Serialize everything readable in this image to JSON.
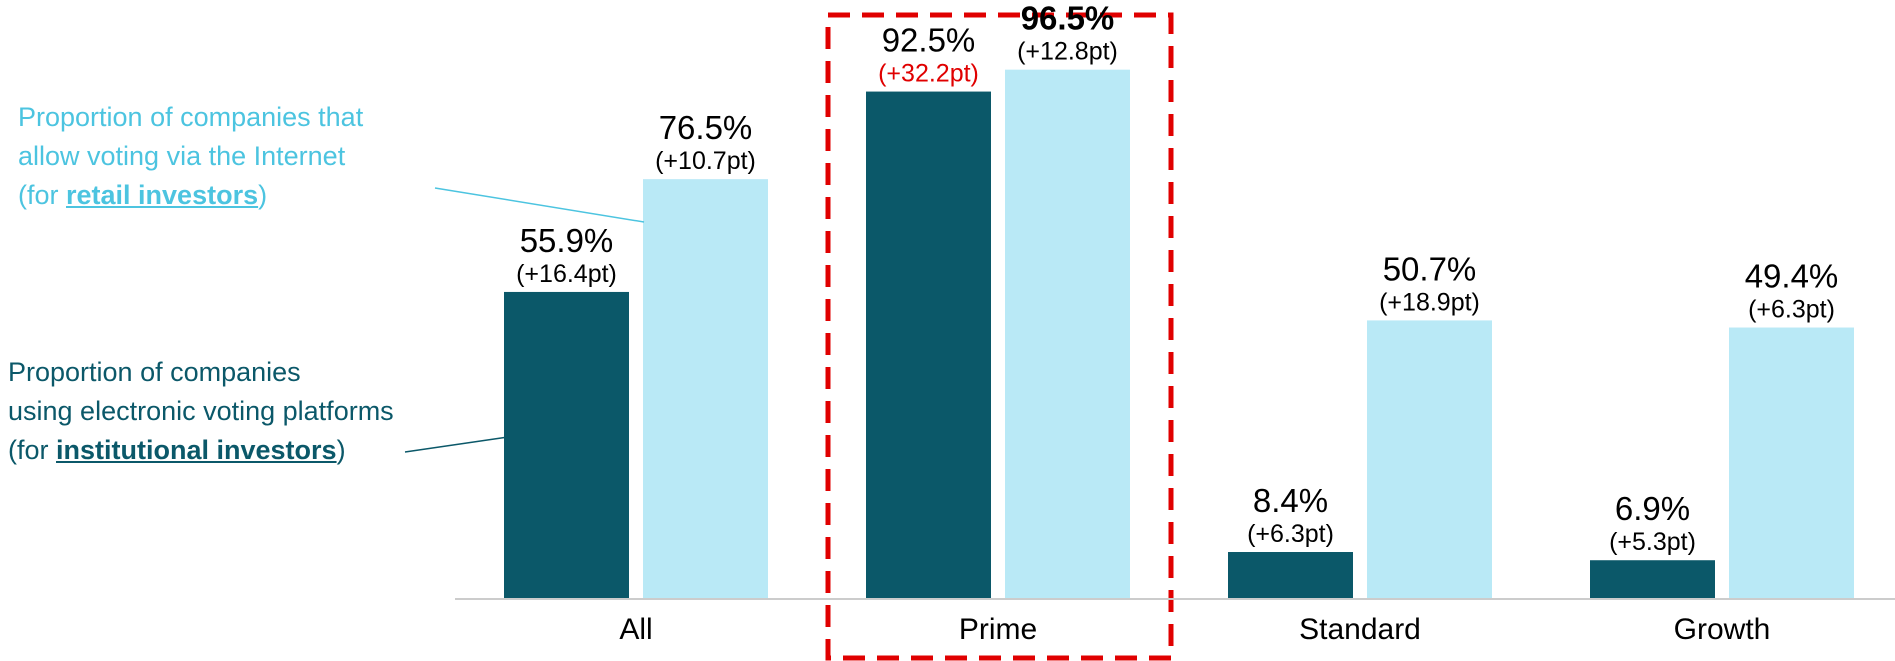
{
  "colors": {
    "institutional": "#0b5869",
    "retail": "#b9e9f6",
    "retail_text": "#4cc4e0",
    "institutional_text": "#0b5869",
    "highlight_box": "#e00000",
    "highlight_label": "#e00000",
    "axis": "#cccccc"
  },
  "legend": {
    "retail": {
      "line1": "Proportion of companies that",
      "line2": "allow voting via the Internet",
      "line3_prefix": "(for ",
      "line3_bold": "retail investors",
      "line3_suffix": ")"
    },
    "institutional": {
      "line1": "Proportion of companies",
      "line2": "using electronic voting platforms",
      "line3_prefix": "(for ",
      "line3_bold": "institutional investors",
      "line3_suffix": ")"
    }
  },
  "chart_data": {
    "type": "bar",
    "categories": [
      "All",
      "Prime",
      "Standard",
      "Growth"
    ],
    "ylim": [
      0,
      100
    ],
    "highlight_category": "Prime",
    "series": [
      {
        "key": "institutional",
        "values": [
          55.9,
          92.5,
          8.4,
          6.9
        ],
        "value_labels": [
          "55.9%",
          "92.5%",
          "8.4%",
          "6.9%"
        ],
        "change_labels": [
          "(+16.4pt)",
          "(+32.2pt)",
          "(+6.3pt)",
          "(+5.3pt)"
        ]
      },
      {
        "key": "retail",
        "values": [
          76.5,
          96.5,
          50.7,
          49.4
        ],
        "value_labels": [
          "76.5%",
          "96.5%",
          "50.7%",
          "49.4%"
        ],
        "change_labels": [
          "(+10.7pt)",
          "(+12.8pt)",
          "(+18.9pt)",
          "(+6.3pt)"
        ]
      }
    ],
    "emphasis": {
      "bold_value_label": "96.5%",
      "red_change_label": "(+32.2pt)"
    }
  }
}
